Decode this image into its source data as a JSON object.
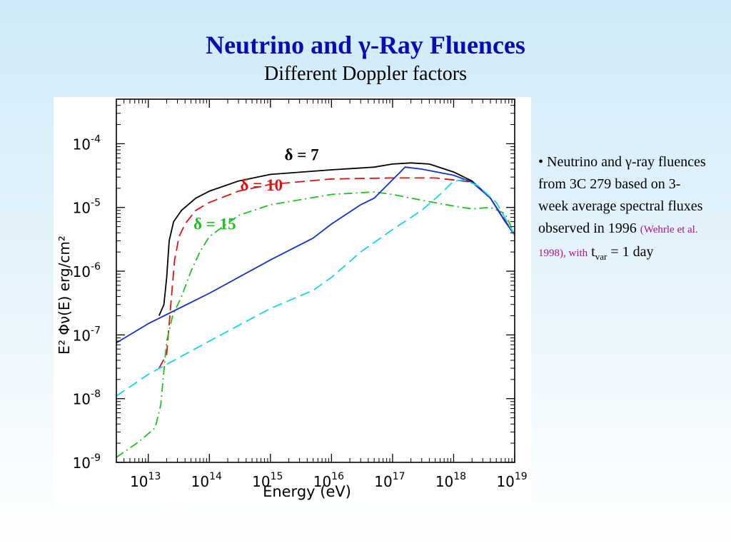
{
  "slide": {
    "title": "Neutrino and γ-Ray Fluences",
    "subtitle": "Different Doppler factors",
    "bullet": {
      "marker": "•",
      "text": "Neutrino and γ-ray fluences from 3C 279 based on 3-week average spectral fluxes observed in 1996",
      "reference": "(Wehrle et al. 1998), with",
      "tvar_base": "t",
      "tvar_sub": "var",
      "tvar_value": "= 1 day"
    }
  },
  "chart_data": {
    "type": "line",
    "x_scale": "log",
    "y_scale": "log",
    "xlim": [
      3000000000000.0,
      1e+19
    ],
    "ylim": [
      1e-09,
      0.0005
    ],
    "xlabel": "Energy   (eV)",
    "ylabel": "E² Φν(E)   erg/cm²",
    "x_ticks": [
      {
        "value": 10000000000000.0,
        "label_base": "10",
        "label_exp": "13"
      },
      {
        "value": 100000000000000.0,
        "label_base": "10",
        "label_exp": "14"
      },
      {
        "value": 1000000000000000.0,
        "label_base": "10",
        "label_exp": "15"
      },
      {
        "value": 1e+16,
        "label_base": "10",
        "label_exp": "16"
      },
      {
        "value": 1e+17,
        "label_base": "10",
        "label_exp": "17"
      },
      {
        "value": 1e+18,
        "label_base": "10",
        "label_exp": "18"
      },
      {
        "value": 1e+19,
        "label_base": "10",
        "label_exp": "19"
      }
    ],
    "y_ticks": [
      {
        "value": 1e-09,
        "label_base": "10",
        "label_exp": "-9"
      },
      {
        "value": 1e-08,
        "label_base": "10",
        "label_exp": "-8"
      },
      {
        "value": 1e-07,
        "label_base": "10",
        "label_exp": "-7"
      },
      {
        "value": 1e-06,
        "label_base": "10",
        "label_exp": "-6"
      },
      {
        "value": 1e-05,
        "label_base": "10",
        "label_exp": "-5"
      },
      {
        "value": 0.0001,
        "label_base": "10",
        "label_exp": "-4"
      }
    ],
    "series": [
      {
        "key": "delta7",
        "color": "#000000",
        "dash": "",
        "points": [
          [
            15000000000000.0,
            2e-07
          ],
          [
            18000000000000.0,
            3e-07
          ],
          [
            20000000000000.0,
            8e-07
          ],
          [
            22000000000000.0,
            3e-06
          ],
          [
            26000000000000.0,
            6e-06
          ],
          [
            35000000000000.0,
            9e-06
          ],
          [
            60000000000000.0,
            1.4e-05
          ],
          [
            100000000000000.0,
            1.8e-05
          ],
          [
            300000000000000.0,
            2.6e-05
          ],
          [
            1000000000000000.0,
            3.3e-05
          ],
          [
            1e+16,
            3.9e-05
          ],
          [
            5e+16,
            4.3e-05
          ],
          [
            1e+17,
            4.8e-05
          ],
          [
            2e+17,
            5e-05
          ],
          [
            4e+17,
            4.8e-05
          ],
          [
            1e+18,
            3.6e-05
          ],
          [
            2e+18,
            2.6e-05
          ],
          [
            4e+18,
            1.4e-05
          ],
          [
            7e+18,
            6e-06
          ],
          [
            1e+19,
            3.7e-06
          ]
        ]
      },
      {
        "key": "delta10",
        "color": "#e01010",
        "dash": "14,7",
        "points": [
          [
            15000000000000.0,
            3e-08
          ],
          [
            20000000000000.0,
            5e-08
          ],
          [
            23000000000000.0,
            2.5e-07
          ],
          [
            27000000000000.0,
            1.5e-06
          ],
          [
            32000000000000.0,
            3.5e-06
          ],
          [
            40000000000000.0,
            5.5e-06
          ],
          [
            60000000000000.0,
            9e-06
          ],
          [
            100000000000000.0,
            1.2e-05
          ],
          [
            300000000000000.0,
            1.8e-05
          ],
          [
            1000000000000000.0,
            2.3e-05
          ],
          [
            1e+16,
            2.8e-05
          ],
          [
            1e+17,
            2.9e-05
          ],
          [
            5e+17,
            2.9e-05
          ],
          [
            1e+18,
            2.7e-05
          ],
          [
            2e+18,
            2.5e-05
          ],
          [
            4e+18,
            1.4e-05
          ],
          [
            1e+19,
            3.7e-06
          ]
        ]
      },
      {
        "key": "delta15",
        "color": "#20c020",
        "dash": "12,5,2,5",
        "points": [
          [
            3000000000000.0,
            1.2e-09
          ],
          [
            7000000000000.0,
            2.1e-09
          ],
          [
            13000000000000.0,
            3.5e-09
          ],
          [
            16000000000000.0,
            8e-09
          ],
          [
            20000000000000.0,
            8e-08
          ],
          [
            25000000000000.0,
            2e-07
          ],
          [
            35000000000000.0,
            4e-07
          ],
          [
            50000000000000.0,
            1e-06
          ],
          [
            70000000000000.0,
            2e-06
          ],
          [
            100000000000000.0,
            3.5e-06
          ],
          [
            300000000000000.0,
            7.5e-06
          ],
          [
            1000000000000000.0,
            1.1e-05
          ],
          [
            1e+16,
            1.6e-05
          ],
          [
            5e+16,
            1.75e-05
          ],
          [
            1e+17,
            1.6e-05
          ],
          [
            3e+17,
            1.3e-05
          ],
          [
            1e+18,
            1.05e-05
          ],
          [
            2e+18,
            9.5e-06
          ],
          [
            4e+18,
            1e-05
          ],
          [
            7e+18,
            8e-06
          ],
          [
            1e+19,
            3.7e-06
          ]
        ]
      },
      {
        "key": "blue",
        "color": "#1030d0",
        "dash": "",
        "points": [
          [
            3000000000000.0,
            7.5e-08
          ],
          [
            10000000000000.0,
            1.5e-07
          ],
          [
            100000000000000.0,
            4.5e-07
          ],
          [
            1000000000000000.0,
            1.5e-06
          ],
          [
            5000000000000000.0,
            3.3e-06
          ],
          [
            1e+16,
            5.5e-06
          ],
          [
            3e+16,
            1.1e-05
          ],
          [
            5e+16,
            1.4e-05
          ],
          [
            8e+16,
            2.2e-05
          ],
          [
            1.3e+17,
            3.5e-05
          ],
          [
            1.6e+17,
            4.3e-05
          ],
          [
            3e+17,
            4e-05
          ],
          [
            1e+18,
            3.2e-05
          ],
          [
            2e+18,
            2.5e-05
          ],
          [
            4e+18,
            1.4e-05
          ],
          [
            7e+18,
            6e-06
          ],
          [
            1e+19,
            3.7e-06
          ]
        ]
      },
      {
        "key": "cyan",
        "color": "#10d8e8",
        "dash": "14,7",
        "points": [
          [
            3000000000000.0,
            1.1e-08
          ],
          [
            10000000000000.0,
            2.4e-08
          ],
          [
            100000000000000.0,
            8e-08
          ],
          [
            1000000000000000.0,
            2.6e-07
          ],
          [
            5000000000000000.0,
            5e-07
          ],
          [
            1e+16,
            8e-07
          ],
          [
            3e+16,
            2e-06
          ],
          [
            1e+17,
            4.5e-06
          ],
          [
            3e+17,
            9e-06
          ],
          [
            6e+17,
            1.6e-05
          ],
          [
            1e+18,
            2.6e-05
          ],
          [
            1.5e+18,
            2.7e-05
          ],
          [
            2.5e+18,
            2.2e-05
          ],
          [
            5e+18,
            1.2e-05
          ],
          [
            1e+19,
            3.7e-06
          ]
        ]
      }
    ],
    "annotations": [
      {
        "symbol": "δ",
        "text": " = 7",
        "color": "#000000",
        "x": 1700000000000000.0,
        "y": 5.5e-05
      },
      {
        "symbol": "δ",
        "text": " = 10",
        "color": "#e01010",
        "x": 320000000000000.0,
        "y": 1.85e-05
      },
      {
        "symbol": "δ",
        "text": " = 15",
        "color": "#20c020",
        "x": 55000000000000.0,
        "y": 4.5e-06
      }
    ]
  }
}
